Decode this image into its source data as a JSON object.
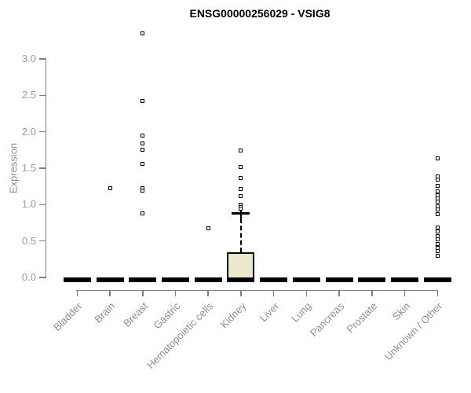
{
  "title": "ENSG00000256029 - VSIG8",
  "chart_data": {
    "type": "boxplot",
    "title": "ENSG00000256029 - VSIG8",
    "xlabel": "",
    "ylabel": "Expression",
    "ylim": [
      0,
      3.4
    ],
    "yticks": [
      0.0,
      0.5,
      1.0,
      1.5,
      2.0,
      2.5,
      3.0
    ],
    "ytick_labels": [
      "0.0",
      "0.5",
      "1.0",
      "1.5",
      "2.0",
      "2.5",
      "3.0"
    ],
    "grid": false,
    "legend": "none",
    "box_fill_color": "#ece8cd",
    "axis_color": "#808080",
    "label_color": "#8e8e8e",
    "categories": [
      "Bladder",
      "Brain",
      "Breast",
      "Gastric",
      "Hematopoietic cells",
      "Kidney",
      "Liver",
      "Lung",
      "Pancreas",
      "Prostate",
      "Skin",
      "Unknown / Other"
    ],
    "boxes": [
      {
        "category": "Bladder",
        "median": 0,
        "q1": 0,
        "q3": 0,
        "whisker_low": 0,
        "whisker_high": 0,
        "outliers": []
      },
      {
        "category": "Brain",
        "median": 0,
        "q1": 0,
        "q3": 0,
        "whisker_low": 0,
        "whisker_high": 0,
        "outliers": [
          1.22
        ]
      },
      {
        "category": "Breast",
        "median": 0,
        "q1": 0,
        "q3": 0,
        "whisker_low": 0,
        "whisker_high": 0,
        "outliers": [
          3.35,
          2.42,
          1.95,
          1.84,
          1.75,
          1.56,
          1.22,
          1.19,
          0.88
        ]
      },
      {
        "category": "Gastric",
        "median": 0,
        "q1": 0,
        "q3": 0,
        "whisker_low": 0,
        "whisker_high": 0,
        "outliers": []
      },
      {
        "category": "Hematopoietic cells",
        "median": 0,
        "q1": 0,
        "q3": 0,
        "whisker_low": 0,
        "whisker_high": 0,
        "outliers": [
          0.67
        ]
      },
      {
        "category": "Kidney",
        "median": 0,
        "q1": 0,
        "q3": 0.35,
        "whisker_low": 0,
        "whisker_high": 0.88,
        "outliers": [
          1.74,
          1.52,
          1.37,
          1.21,
          1.12,
          1.0,
          0.97,
          0.94
        ]
      },
      {
        "category": "Liver",
        "median": 0,
        "q1": 0,
        "q3": 0,
        "whisker_low": 0,
        "whisker_high": 0,
        "outliers": []
      },
      {
        "category": "Lung",
        "median": 0,
        "q1": 0,
        "q3": 0,
        "whisker_low": 0,
        "whisker_high": 0,
        "outliers": []
      },
      {
        "category": "Pancreas",
        "median": 0,
        "q1": 0,
        "q3": 0,
        "whisker_low": 0,
        "whisker_high": 0,
        "outliers": []
      },
      {
        "category": "Prostate",
        "median": 0,
        "q1": 0,
        "q3": 0,
        "whisker_low": 0,
        "whisker_high": 0,
        "outliers": []
      },
      {
        "category": "Skin",
        "median": 0,
        "q1": 0,
        "q3": 0,
        "whisker_low": 0,
        "whisker_high": 0,
        "outliers": []
      },
      {
        "category": "Unknown / Other",
        "median": 0,
        "q1": 0,
        "q3": 0,
        "whisker_low": 0,
        "whisker_high": 0,
        "outliers": [
          1.64,
          1.39,
          1.34,
          1.26,
          1.18,
          1.13,
          1.08,
          1.04,
          0.98,
          0.93,
          0.87,
          0.68,
          0.63,
          0.57,
          0.52,
          0.46,
          0.41,
          0.36,
          0.3
        ]
      }
    ]
  }
}
